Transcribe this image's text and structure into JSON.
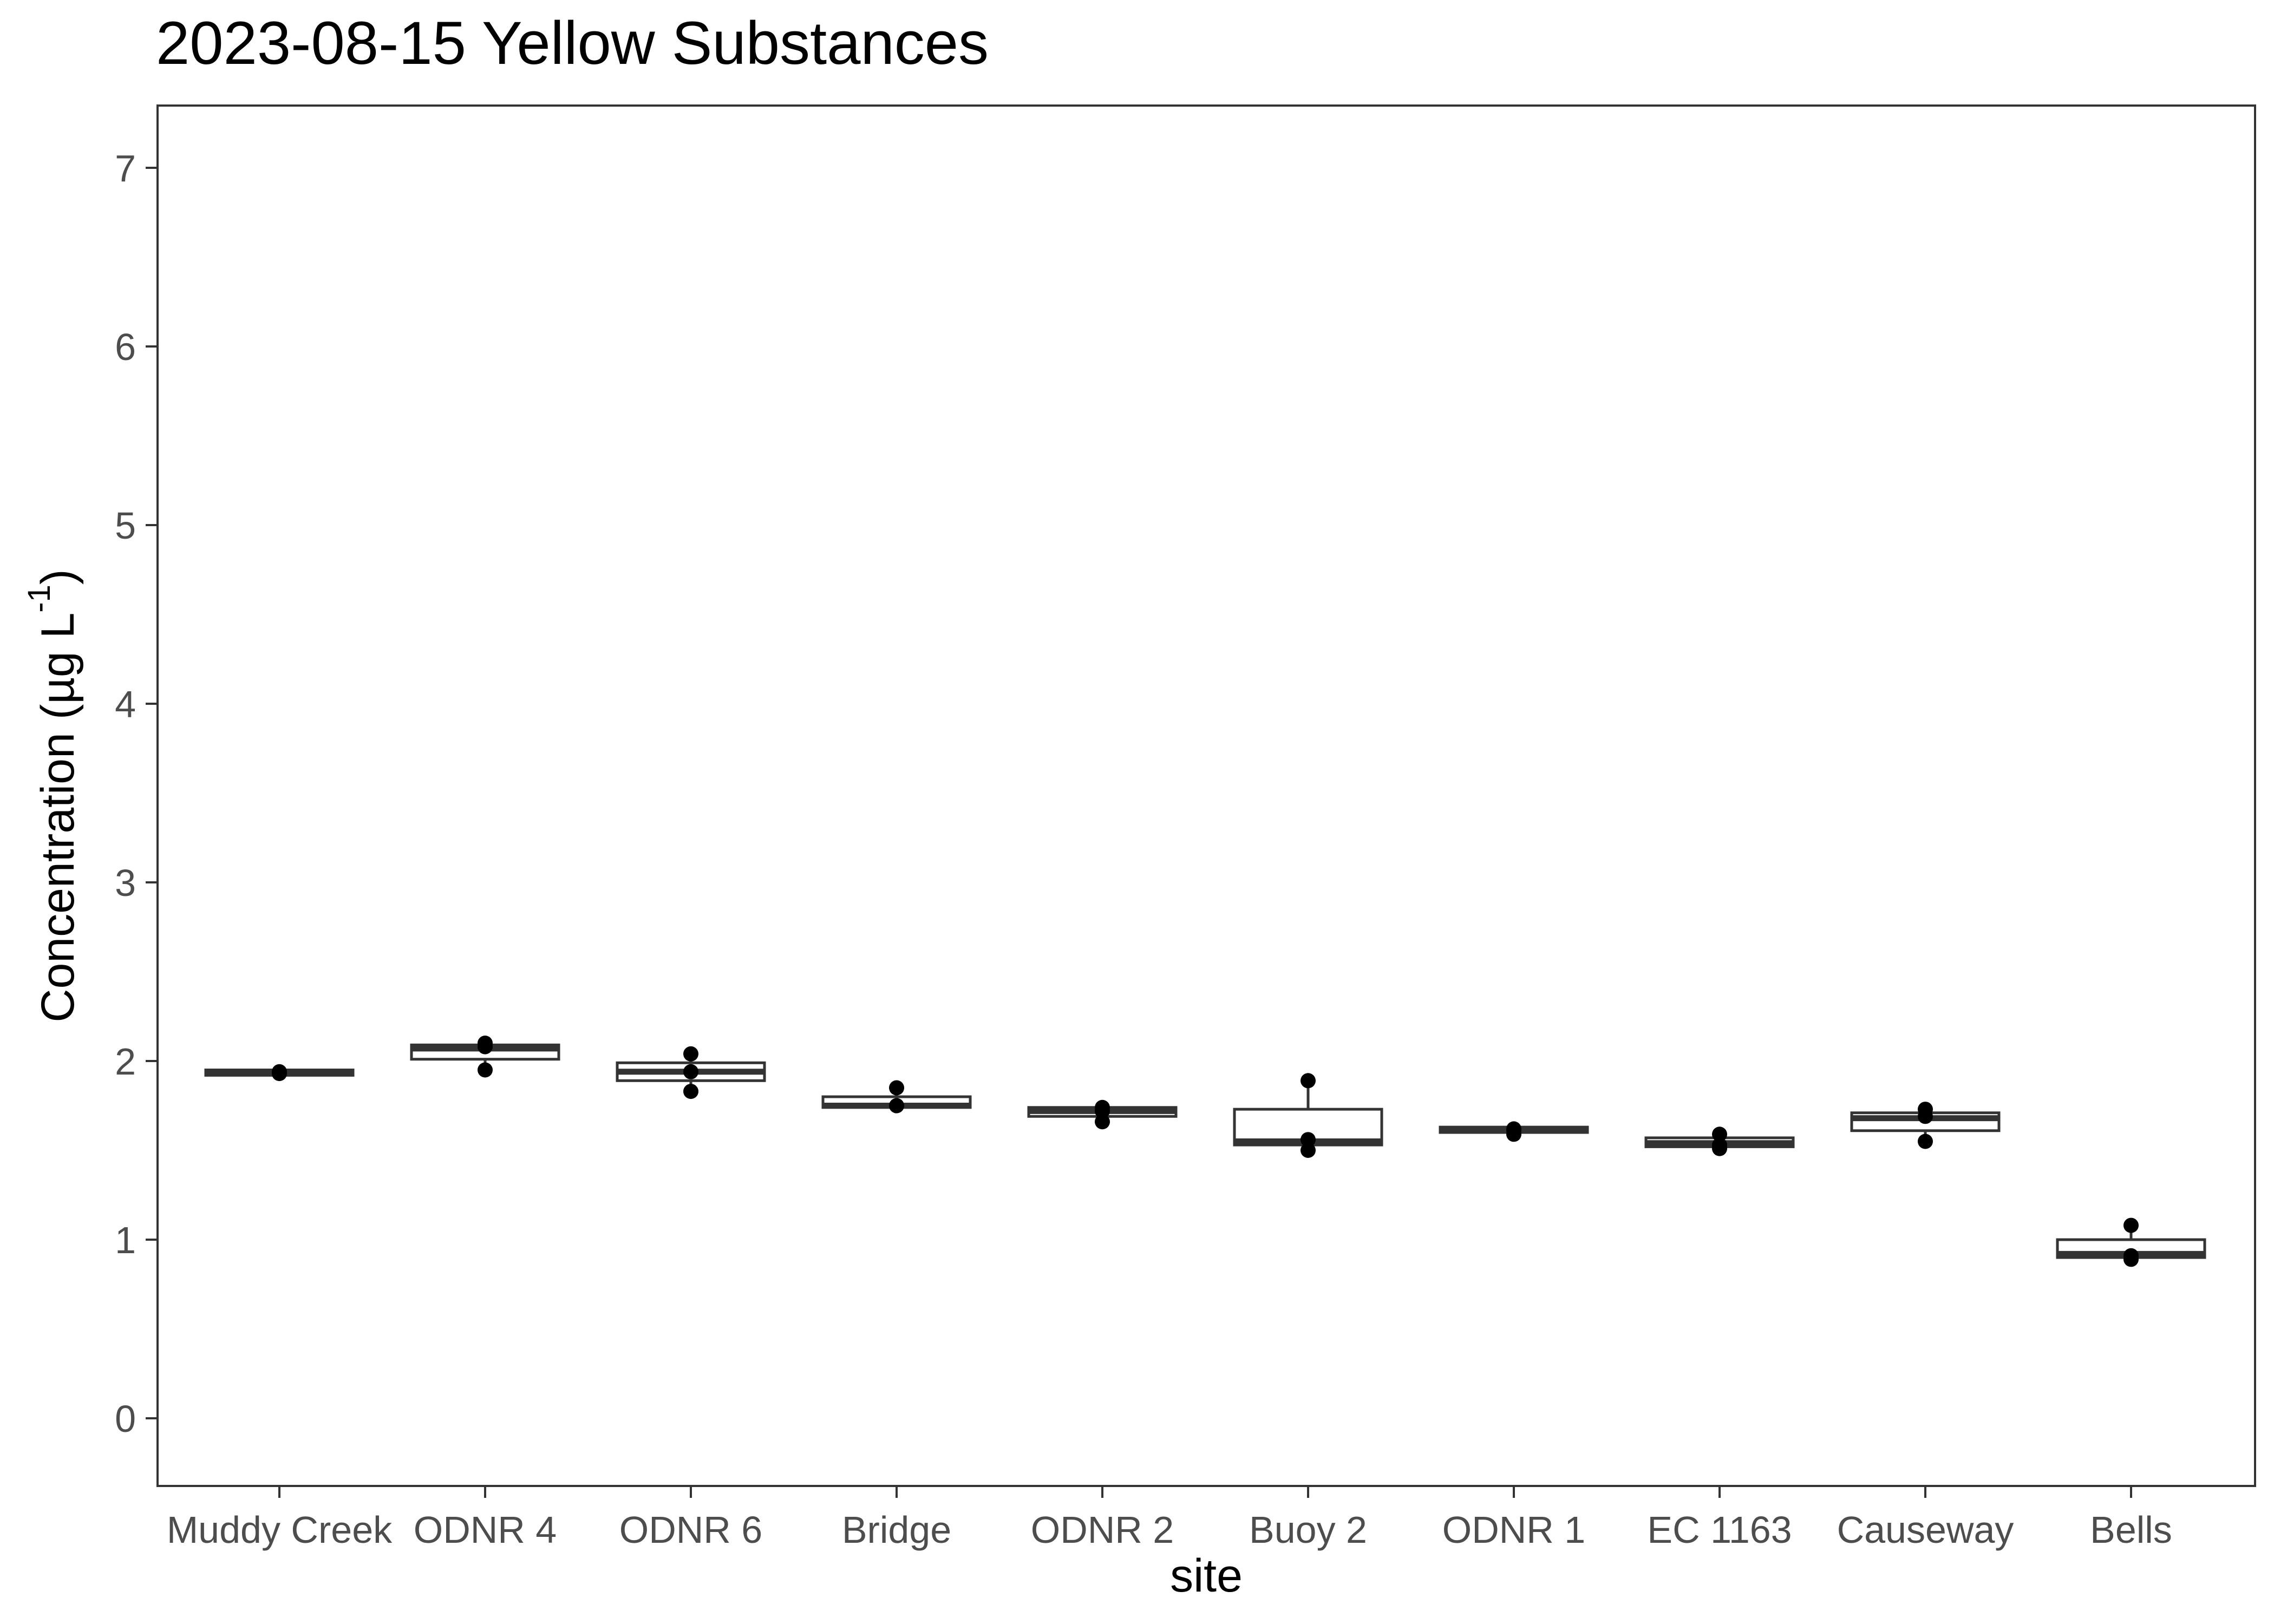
{
  "chart_data": {
    "type": "box",
    "title": "2023-08-15 Yellow Substances",
    "xlabel": "site",
    "ylabel": {
      "prefix": "Concentration (µg L",
      "superscript": "-1",
      "suffix": ")"
    },
    "ylim": [
      -0.35,
      7.35
    ],
    "yticks": [
      "0",
      "1",
      "2",
      "3",
      "4",
      "5",
      "6",
      "7"
    ],
    "grid": false,
    "legend": "none",
    "categories": [
      "Muddy Creek",
      "ODNR 4",
      "ODNR 6",
      "Bridge",
      "ODNR 2",
      "Buoy 2",
      "ODNR 1",
      "EC 1163",
      "Causeway",
      "Bells"
    ],
    "boxes": [
      {
        "site": "Muddy Creek",
        "q1": 1.92,
        "median": 1.935,
        "q3": 1.95,
        "whisker_low": 1.92,
        "whisker_high": 1.95,
        "points": [
          1.935,
          1.94,
          1.93
        ]
      },
      {
        "site": "ODNR 4",
        "q1": 2.01,
        "median": 2.07,
        "q3": 2.09,
        "whisker_low": 1.95,
        "whisker_high": 2.1,
        "points": [
          1.95,
          2.08,
          2.1
        ]
      },
      {
        "site": "ODNR 6",
        "q1": 1.89,
        "median": 1.94,
        "q3": 1.99,
        "whisker_low": 1.83,
        "whisker_high": 2.04,
        "points": [
          1.83,
          1.94,
          2.04
        ]
      },
      {
        "site": "Bridge",
        "q1": 1.74,
        "median": 1.75,
        "q3": 1.8,
        "whisker_low": 1.74,
        "whisker_high": 1.85,
        "points": [
          1.75,
          1.75,
          1.85
        ]
      },
      {
        "site": "ODNR 2",
        "q1": 1.69,
        "median": 1.72,
        "q3": 1.74,
        "whisker_low": 1.66,
        "whisker_high": 1.74,
        "points": [
          1.66,
          1.72,
          1.74
        ]
      },
      {
        "site": "Buoy 2",
        "q1": 1.53,
        "median": 1.55,
        "q3": 1.73,
        "whisker_low": 1.5,
        "whisker_high": 1.89,
        "points": [
          1.5,
          1.56,
          1.89
        ]
      },
      {
        "site": "ODNR 1",
        "q1": 1.6,
        "median": 1.615,
        "q3": 1.63,
        "whisker_low": 1.59,
        "whisker_high": 1.63,
        "points": [
          1.59,
          1.62,
          1.61
        ]
      },
      {
        "site": "EC 1163",
        "q1": 1.52,
        "median": 1.54,
        "q3": 1.57,
        "whisker_low": 1.51,
        "whisker_high": 1.59,
        "points": [
          1.51,
          1.53,
          1.59
        ]
      },
      {
        "site": "Causeway",
        "q1": 1.61,
        "median": 1.68,
        "q3": 1.71,
        "whisker_low": 1.55,
        "whisker_high": 1.73,
        "points": [
          1.55,
          1.69,
          1.73
        ]
      },
      {
        "site": "Bells",
        "q1": 0.9,
        "median": 0.92,
        "q3": 1.0,
        "whisker_low": 0.89,
        "whisker_high": 1.08,
        "points": [
          0.89,
          0.91,
          1.08
        ]
      }
    ]
  }
}
